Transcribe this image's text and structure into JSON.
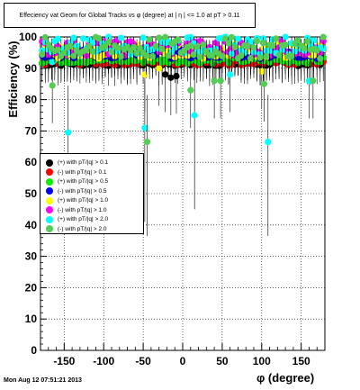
{
  "title": "Effeciency vat Geom for Global Tracks vs φ (degree) at | η | <= 1.0 at pT > 0.11",
  "footer": "Mon Aug 12 07:51:21 2013",
  "chart_data": {
    "type": "scatter",
    "title": "Effeciency vat Geom for Global Tracks vs φ (degree) at | η | <= 1.0 at pT > 0.11",
    "xlabel": "φ (degree)",
    "ylabel": "Efficiency (%)",
    "xlim": [
      -180,
      180
    ],
    "ylim": [
      0,
      100
    ],
    "xticks": [
      -150,
      -100,
      -50,
      0,
      50,
      100,
      150
    ],
    "yticks": [
      0,
      10,
      20,
      30,
      40,
      50,
      60,
      70,
      80,
      90,
      100
    ],
    "grid": true,
    "legend_position": "left-middle",
    "series": [
      {
        "name": "(+) with pT/|q| > 0.1",
        "color": "#000000",
        "base": 91.5,
        "spread": 0.8,
        "outliers": [
          [
            -22,
            88
          ],
          [
            -15,
            87
          ],
          [
            -8,
            87.5
          ]
        ]
      },
      {
        "name": "(-) with pT/|q| > 0.1",
        "color": "#ff0000",
        "base": 91.8,
        "spread": 0.8,
        "outliers": []
      },
      {
        "name": "(+) with pT/|q| > 0.5",
        "color": "#00ee00",
        "base": 92.5,
        "spread": 1.0,
        "outliers": []
      },
      {
        "name": "(-) with pT/|q| > 0.5",
        "color": "#0000ff",
        "base": 94.5,
        "spread": 1.5,
        "outliers": []
      },
      {
        "name": "(+) with pT/|q| > 1.0",
        "color": "#ffff00",
        "base": 95.5,
        "spread": 2.5,
        "outliers": [
          [
            -48,
            88
          ],
          [
            -30,
            90
          ],
          [
            100,
            89
          ]
        ]
      },
      {
        "name": "(-) with pT/|q| > 1.0",
        "color": "#ff00ff",
        "base": 96.5,
        "spread": 2.5,
        "outliers": []
      },
      {
        "name": "(+) with pT/|q| > 2.0",
        "color": "#00ffff",
        "base": 97.5,
        "spread": 3.0,
        "outliers": [
          [
            -145,
            69.5
          ],
          [
            -48,
            71
          ],
          [
            15,
            75
          ],
          [
            108,
            66.5
          ],
          [
            -165,
            92
          ],
          [
            60,
            88
          ],
          [
            160,
            86
          ]
        ]
      },
      {
        "name": "(-) with pT/|q| > 2.0",
        "color": "#55cc55",
        "base": 96.5,
        "spread": 3.5,
        "outliers": [
          [
            -165,
            84.5
          ],
          [
            -45,
            66.5
          ],
          [
            10,
            83
          ],
          [
            40,
            86
          ],
          [
            48,
            86
          ],
          [
            103,
            85
          ],
          [
            165,
            86
          ]
        ]
      }
    ]
  }
}
